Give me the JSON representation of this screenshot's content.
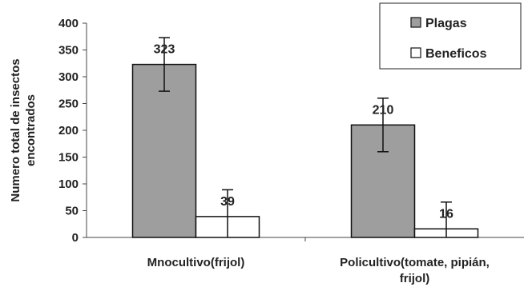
{
  "chart_data": {
    "type": "bar",
    "title": "",
    "xlabel": "",
    "ylabel": "Numero total de insectos encontrados",
    "ylabel_lines": [
      "Numero total de insectos",
      "encontrados"
    ],
    "ylim": [
      0,
      400
    ],
    "yticks": [
      0,
      50,
      100,
      150,
      200,
      250,
      300,
      350,
      400
    ],
    "categories": [
      "Mnocultivo(frijol)",
      "Policultivo(tomate, pipián, frijol)"
    ],
    "category_lines": [
      [
        "Mnocultivo(frijol)"
      ],
      [
        "Policultivo(tomate, pipián,",
        "frijol)"
      ]
    ],
    "series": [
      {
        "name": "Plagas",
        "values": [
          323,
          210
        ],
        "error": [
          50,
          50
        ],
        "color": "#9e9e9e"
      },
      {
        "name": "Beneficos",
        "values": [
          39,
          16
        ],
        "error": [
          50,
          50
        ],
        "color": "#ffffff"
      }
    ],
    "data_labels": [
      [
        "323",
        "210"
      ],
      [
        "39",
        "16"
      ]
    ],
    "legend_position": "top-right",
    "grid": false
  }
}
